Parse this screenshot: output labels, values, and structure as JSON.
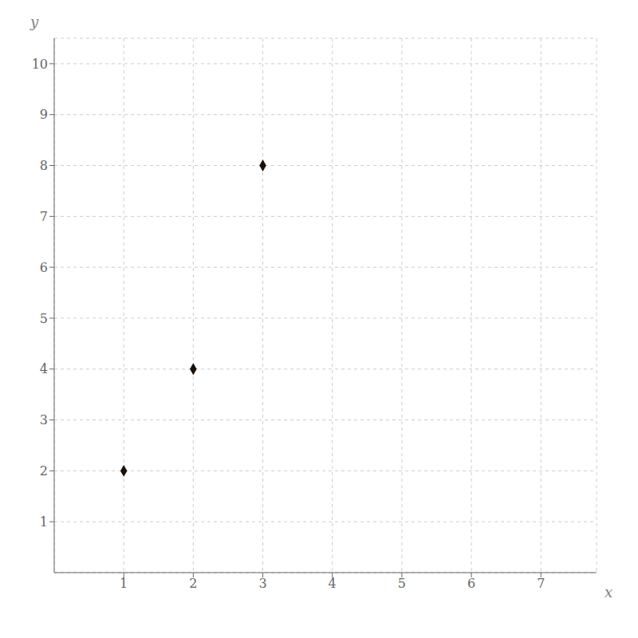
{
  "chart_data": {
    "type": "scatter",
    "x": [
      1,
      2,
      3
    ],
    "values": [
      2,
      4,
      8
    ],
    "xlabel": "x",
    "ylabel": "y",
    "xlim": [
      0,
      7.8
    ],
    "ylim": [
      0,
      10.5
    ],
    "xticks": [
      1,
      2,
      3,
      4,
      5,
      6,
      7
    ],
    "yticks": [
      1,
      2,
      3,
      4,
      5,
      6,
      7,
      8,
      9,
      10
    ],
    "color": "#1a1008",
    "marker": "diamond",
    "grid": true
  }
}
